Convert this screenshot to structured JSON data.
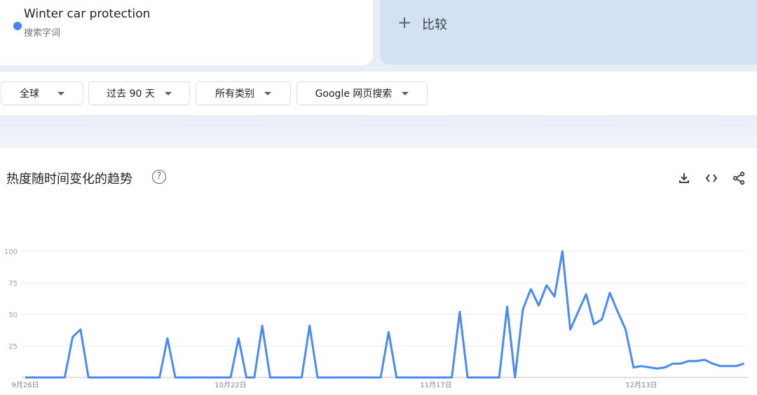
{
  "term_card": {
    "term": "Winter car protection",
    "subtitle": "搜索字词",
    "color": "#4285f4"
  },
  "compare": {
    "icon": "plus-icon",
    "label": "比较"
  },
  "filters": [
    {
      "label": "全球"
    },
    {
      "label": "过去 90 天"
    },
    {
      "label": "所有类别"
    },
    {
      "label": "Google 网页搜索"
    }
  ],
  "chart_header": {
    "title": "热度随时间变化的趋势",
    "help_icon": "?",
    "actions": [
      "download-icon",
      "embed-icon",
      "share-icon"
    ]
  },
  "chart_data": {
    "type": "line",
    "title": "热度随时间变化的趋势",
    "start_date": "9月26日",
    "x_tick_labels": [
      "9月26日",
      "10月22日",
      "11月17日",
      "12月13日"
    ],
    "y_ticks": [
      100,
      75,
      50,
      25
    ],
    "ylim": [
      0,
      100
    ],
    "grid": true,
    "color": "#4a8af4",
    "series": [
      {
        "name": "Winter car protection",
        "values": [
          0,
          0,
          0,
          0,
          0,
          0,
          32,
          38,
          0,
          0,
          0,
          0,
          0,
          0,
          0,
          0,
          0,
          0,
          31,
          0,
          0,
          0,
          0,
          0,
          0,
          0,
          0,
          31,
          0,
          0,
          41,
          0,
          0,
          0,
          0,
          0,
          41,
          0,
          0,
          0,
          0,
          0,
          0,
          0,
          0,
          0,
          36,
          0,
          0,
          0,
          0,
          0,
          0,
          0,
          0,
          52,
          0,
          0,
          0,
          0,
          0,
          56,
          0,
          54,
          70,
          57,
          73,
          64,
          100,
          38,
          52,
          66,
          42,
          46,
          67,
          52,
          38,
          8,
          9,
          8,
          7,
          8,
          11,
          11,
          13,
          13,
          14,
          11,
          9,
          9,
          9,
          11
        ]
      }
    ]
  }
}
